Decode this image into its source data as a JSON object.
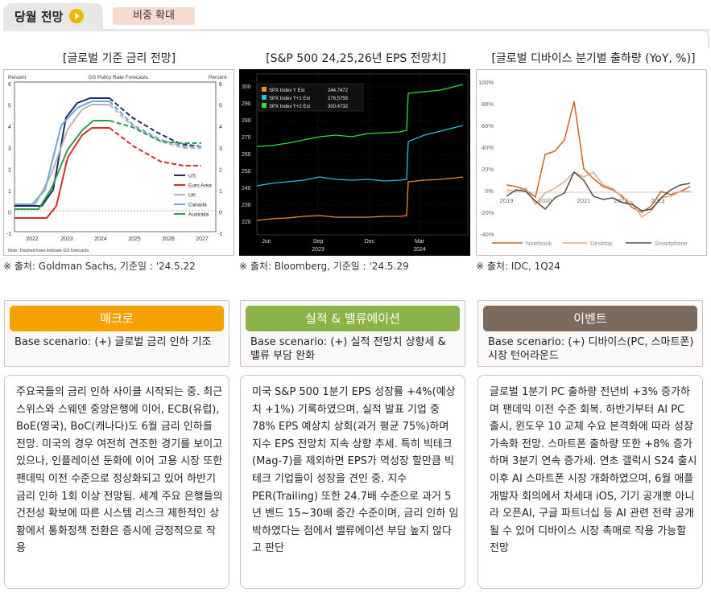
{
  "header": {
    "tab": "당월 전망",
    "badge": "비중 확대"
  },
  "charts": {
    "rates": {
      "title": "[글로벌 기준 금리 전망]",
      "source": "※ 출처: Goldman Sachs, 기준일 : '24.5.22",
      "inner_title": "GS Policy Rate Forecasts",
      "left_unit": "Percent",
      "right_unit": "Percent",
      "note": "Note: Dashed lines indicate GS forecasts.",
      "legend": [
        "US",
        "Euro Area",
        "UK",
        "Canada",
        "Australia"
      ],
      "x_ticks": [
        "2022",
        "2023",
        "2024",
        "2025",
        "2026",
        "2027"
      ],
      "y_ticks": [
        "6",
        "5",
        "4",
        "3",
        "2",
        "1",
        "0",
        "-1"
      ]
    },
    "eps": {
      "title": "[S&P 500 24,25,26년 EPS 전망치]",
      "source": "※ 출처: Bloomberg, 기준일 : '24.5.29",
      "legend": [
        {
          "label": "SPX Index Y Est",
          "value": "244.7472"
        },
        {
          "label": "SPX Index Y+1 Est",
          "value": "276.5755"
        },
        {
          "label": "SPX Index Y+2 Est",
          "value": "300.4732"
        }
      ],
      "y_ticks": [
        "300",
        "290",
        "280",
        "270",
        "260",
        "250",
        "240",
        "230",
        "220"
      ],
      "x_ticks": [
        "Jun",
        "Sep",
        "Dec",
        "Mar"
      ],
      "x_years": [
        "2023",
        "2024"
      ]
    },
    "devices": {
      "title": "[글로벌 디바이스 분기별 출하량 (YoY, %)]",
      "source": "※ 출처: IDC, 1Q24",
      "y_ticks": [
        "100%",
        "80%",
        "60%",
        "40%",
        "20%",
        "0%",
        "-20%",
        "-40%"
      ],
      "x_ticks": [
        "2019",
        "2020",
        "2021",
        "2022",
        "2023"
      ],
      "legend": [
        "Notebook",
        "Desktop",
        "Smartphone"
      ]
    }
  },
  "colors": {
    "rates_us": "#1f2a66",
    "rates_ea": "#d42d2d",
    "rates_uk": "#b5b5b5",
    "rates_ca": "#6fa6d6",
    "rates_au": "#2e9e4a",
    "macro": "#f5a100",
    "earnings": "#8bb34a",
    "event": "#7b6a5e"
  },
  "panels": [
    {
      "title": "매크로",
      "scenario": "Base scenario: (+) 글로벌 금리 인하 기조",
      "body": "주요국들의 금리 인하 사이클 시작되는 중. 최근 스위스와 스웨덴 중앙은행에 이어, ECB(유럽), BoE(영국), BoC(캐나다)도 6월 금리 인하를 전망. 미국의 경우 여전히 견조한 경기를 보이고 있으나, 인플레이션 둔화에 이어 고용 시장 또한 팬데믹 이전 수준으로 정상화되고 있어 하반기 금리 인하 1회 이상 전망됨. 세계 주요 은행들의 건전성 확보에 따른 시스템 리스크 제한적인 상황에서 통화정책 전환은 증시에 긍정적으로 작용"
    },
    {
      "title": "실적 & 밸류에이션",
      "scenario": "Base scenario: (+) 실적 전망치 상향세 & 밸류 부담 완화",
      "body": "미국 S&P 500 1분기 EPS 성장률 +4%(예상치 +1%) 기록하였으며, 실적 발표 기업 중 78% EPS 예상치 상회(과거 평균 75%)하며 지수 EPS 전망치 지속 상향 추세. 특히 빅테크(Mag-7)를 제외하면 EPS가 역성장 할만큼 빅테크 기업들이 성장을 견인 중. 지수 PER(Trailing) 또한 24.7배 수준으로 과거 5년 밴드 15~30배 중간 수준이며, 금리 인하 임박하였다는 점에서 밸류에이션 부담 높지 않다고 판단"
    },
    {
      "title": "이벤트",
      "scenario": "Base scenario: (+) 디바이스(PC, 스마트폰) 시장 턴어라운드",
      "body": "글로벌 1분기 PC 출하량 전년비 +3% 증가하며 팬데믹 이전 수준 회복. 하반기부터 AI PC 출시, 윈도우 10 교체 수요 본격화에 따라 성장 가속화 전망. 스마트폰 출하량 또한 +8% 증가하며 3분기 연속 증가세. 연초 갤럭시 S24 출시 이후 AI 스마트폰 시장 개화하였으며, 6월 애플 개발자 회의에서 차세대 iOS, 기기 공개뿐 아니라 오픈AI, 구글 파트너십 등 AI 관련 전략 공개될 수 있어 디바이스 시장 촉매로 작용 가능할 전망"
    }
  ]
}
